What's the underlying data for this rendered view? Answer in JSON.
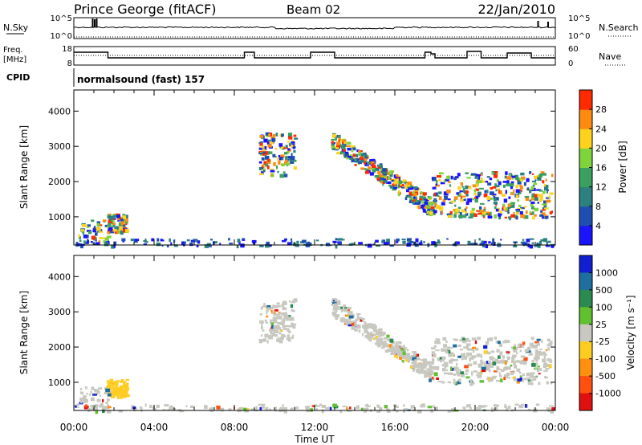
{
  "header": {
    "station": "Prince George (fitACF)",
    "beam": "Beam 02",
    "date": "22/Jan/2010"
  },
  "noise_panel": {
    "left_label": "N.Sky",
    "right_label": "N.Search",
    "left_ticks": [
      "10^5",
      "10^0"
    ],
    "right_ticks": [
      "10^5",
      "10^0"
    ]
  },
  "freq_panel": {
    "left_label_line1": "Freq.",
    "left_label_line2": "[MHz]",
    "right_label": "Nave",
    "left_ticks": [
      "18",
      "8"
    ],
    "right_ticks": [
      "60",
      "0"
    ]
  },
  "cpid": {
    "label": "CPID",
    "value": "normalsound (fast) 157"
  },
  "chart_data": [
    {
      "type": "heatmap",
      "name": "power-panel",
      "ylabel": "Slant Range [km]",
      "y_ticks": [
        1000,
        2000,
        3000,
        4000
      ],
      "ylim": [
        200,
        4600
      ],
      "xlim": [
        0,
        24
      ],
      "colorbar": {
        "label": "Power [dB]",
        "ticks": [
          "4",
          "8",
          "12",
          "16",
          "20",
          "24",
          "28"
        ],
        "colors": [
          "#1a14ff",
          "#1e4fb0",
          "#2d8080",
          "#3aa060",
          "#7ed43a",
          "#ffd21e",
          "#ff8a10",
          "#ff2a00"
        ]
      }
    },
    {
      "type": "heatmap",
      "name": "velocity-panel",
      "ylabel": "Slant Range [km]",
      "y_ticks": [
        1000,
        2000,
        3000,
        4000
      ],
      "ylim": [
        200,
        4600
      ],
      "xlim": [
        0,
        24
      ],
      "colorbar": {
        "label": "Velocity [m s⁻¹]",
        "ticks": [
          "1000",
          "500",
          "100",
          "25",
          "-25",
          "-100",
          "-500",
          "-1000"
        ],
        "colors": [
          "#1020d0",
          "#1e6fa0",
          "#2a8a50",
          "#60c030",
          "#c8c8c0",
          "#ffcc20",
          "#ff9010",
          "#ff5010",
          "#e01010"
        ]
      }
    }
  ],
  "x_axis": {
    "ticks": [
      "00:00",
      "04:00",
      "08:00",
      "12:00",
      "16:00",
      "20:00",
      "00:00"
    ],
    "label": "Time UT"
  }
}
